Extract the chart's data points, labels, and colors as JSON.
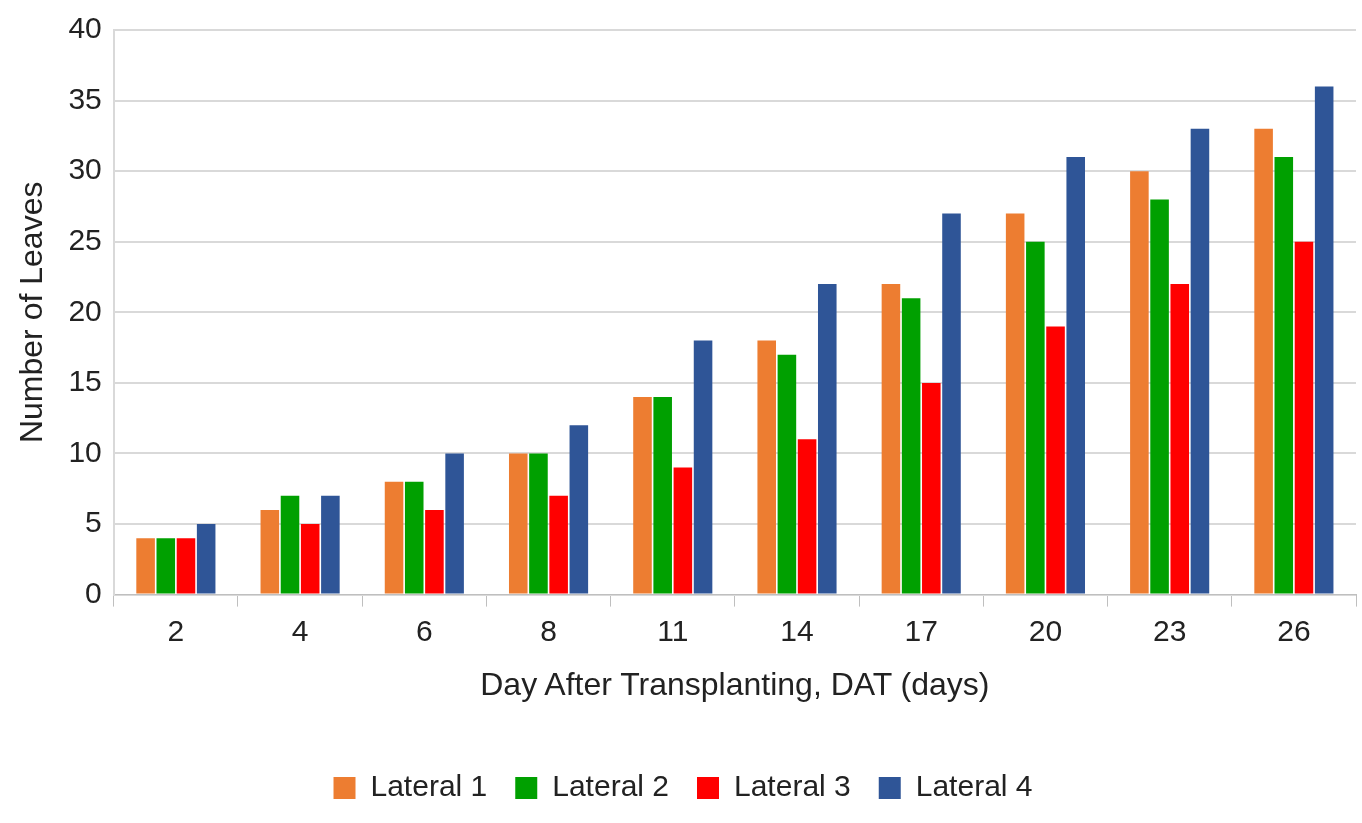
{
  "chart_data": {
    "type": "bar",
    "xlabel": "Day After Transplanting, DAT (days)",
    "ylabel": "Number of Leaves",
    "categories": [
      "2",
      "4",
      "6",
      "8",
      "11",
      "14",
      "17",
      "20",
      "23",
      "26"
    ],
    "series": [
      {
        "name": "Lateral 1",
        "color": "#ed7d31",
        "values": [
          4,
          6,
          8,
          10,
          14,
          18,
          22,
          27,
          30,
          33
        ]
      },
      {
        "name": "Lateral 2",
        "color": "#00a000",
        "values": [
          4,
          7,
          8,
          10,
          14,
          17,
          21,
          25,
          28,
          31
        ]
      },
      {
        "name": "Lateral 3",
        "color": "#ff0000",
        "values": [
          4,
          5,
          6,
          7,
          9,
          11,
          15,
          19,
          22,
          25
        ]
      },
      {
        "name": "Lateral 4",
        "color": "#2f5597",
        "values": [
          5,
          7,
          10,
          12,
          18,
          22,
          27,
          31,
          33,
          36
        ]
      }
    ],
    "ylim": [
      0,
      40
    ],
    "yticks": [
      0,
      5,
      10,
      15,
      20,
      25,
      30,
      35,
      40
    ],
    "grid": "y",
    "legend": "bottom"
  }
}
